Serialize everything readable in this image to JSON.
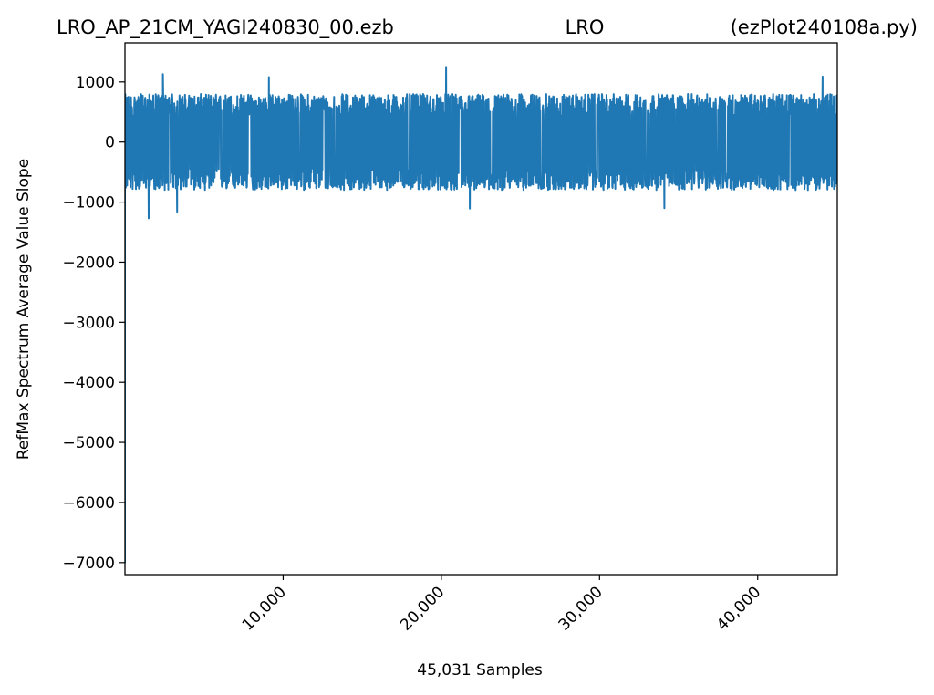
{
  "chart_data": {
    "type": "line",
    "title": {
      "left": "LRO_AP_21CM_YAGI240830_00.ezb",
      "center": "LRO",
      "right": "(ezPlot240108a.py)"
    },
    "xlabel": "45,031 Samples",
    "ylabel": "RefMax Spectrum Average Value Slope",
    "xlim": [
      0,
      45031
    ],
    "ylim": [
      -7200,
      1650
    ],
    "x_ticks": [
      10000,
      20000,
      30000,
      40000
    ],
    "x_tick_labels": [
      "10,000",
      "20,000",
      "30,000",
      "40,000"
    ],
    "y_ticks": [
      1000,
      0,
      -1000,
      -2000,
      -3000,
      -4000,
      -5000,
      -6000,
      -7000
    ],
    "y_tick_labels": [
      "1000",
      "0",
      "−1000",
      "−2000",
      "−3000",
      "−4000",
      "−5000",
      "−6000",
      "−7000"
    ],
    "grid": false,
    "series": [
      {
        "color": "#1f77b4",
        "count": 45031,
        "typical_range": [
          -800,
          800
        ],
        "min": -1270,
        "max": 1250,
        "spikes": [
          {
            "x": 1500,
            "y": -1270
          },
          {
            "x": 2400,
            "y": 1130
          },
          {
            "x": 3300,
            "y": -1160
          },
          {
            "x": 9100,
            "y": 1080
          },
          {
            "x": 20300,
            "y": 1250
          },
          {
            "x": 21800,
            "y": -1110
          },
          {
            "x": 34100,
            "y": -1100
          },
          {
            "x": 44100,
            "y": 1090
          }
        ]
      }
    ]
  }
}
